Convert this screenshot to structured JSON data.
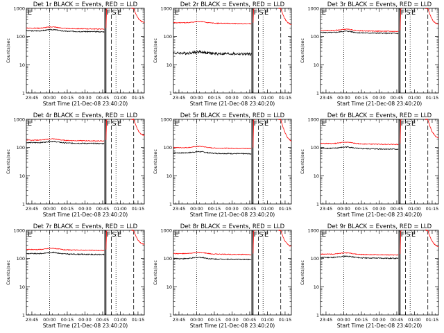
{
  "chart_data": {
    "type": "line",
    "layout": "3x3 grid of detector panels",
    "ylabel": "Counts/sec",
    "xlabel": "Start Time (21-Dec-08 23:40:20)",
    "y_scale": "log",
    "ylim": [
      1,
      1000
    ],
    "y_tick_labels": [
      "1",
      "10",
      "100",
      "1000"
    ],
    "x_range_minutes_after_start": [
      0,
      100
    ],
    "x_tick_labels": [
      "23:45",
      "00:00",
      "00:15",
      "00:30",
      "00:45",
      "01:00",
      "01:15"
    ],
    "x_tick_minutes_after_start": [
      4.67,
      19.67,
      34.67,
      49.67,
      64.67,
      79.67,
      94.67
    ],
    "series_colors": {
      "events": "#000000",
      "lld": "#ff0000"
    },
    "markers": {
      "dotted_lines_minutes": [
        19.67,
        76
      ],
      "dashed_lines_minutes": [
        72,
        91
      ],
      "solid_lines_minutes": [
        66.5,
        67.5
      ],
      "labels": [
        {
          "text": "E",
          "at_minutes": 1
        },
        {
          "text": "F",
          "at_minutes": 68
        },
        {
          "text": "S",
          "at_minutes": 72.5
        },
        {
          "text": "E",
          "at_minutes": 77
        }
      ]
    },
    "panels": [
      {
        "title": "Det 1r BLACK = Events, RED = LLD",
        "events_level": 160,
        "lld_level": 200,
        "post_peak": 1000,
        "post_end": 300
      },
      {
        "title": "Det 2r BLACK = Events, RED = LLD",
        "events_level": 26,
        "lld_level": 310,
        "post_peak": 1000,
        "post_end": 250
      },
      {
        "title": "Det 3r BLACK = Events, RED = LLD",
        "events_level": 140,
        "lld_level": 165,
        "post_peak": 1000,
        "post_end": 250
      },
      {
        "title": "Det 4r BLACK = Events, RED = LLD",
        "events_level": 150,
        "lld_level": 185,
        "post_peak": 1000,
        "post_end": 250
      },
      {
        "title": "Det 5r BLACK = Events, RED = LLD",
        "events_level": 65,
        "lld_level": 100,
        "post_peak": 1000,
        "post_end": 150
      },
      {
        "title": "Det 6r BLACK = Events, RED = LLD",
        "events_level": 95,
        "lld_level": 140,
        "post_peak": 1000,
        "post_end": 200
      },
      {
        "title": "Det 7r BLACK = Events, RED = LLD",
        "events_level": 150,
        "lld_level": 210,
        "post_peak": 1000,
        "post_end": 300
      },
      {
        "title": "Det 8r BLACK = Events, RED = LLD",
        "events_level": 100,
        "lld_level": 150,
        "post_peak": 1000,
        "post_end": 250
      },
      {
        "title": "Det 9r BLACK = Events, RED = LLD",
        "events_level": 110,
        "lld_level": 145,
        "post_peak": 1000,
        "post_end": 250
      }
    ]
  }
}
